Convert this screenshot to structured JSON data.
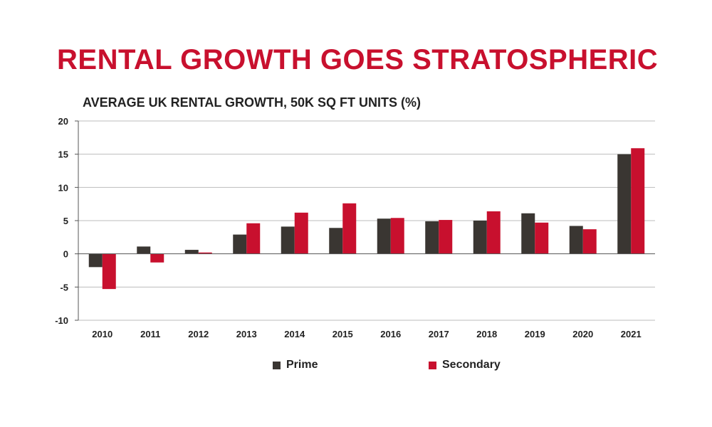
{
  "title": "RENTAL GROWTH GOES STRATOSPHERIC",
  "chart_data": {
    "type": "bar",
    "title": "AVERAGE UK RENTAL GROWTH, 50K SQ FT UNITS (%)",
    "xlabel": "",
    "ylabel": "",
    "ylim": [
      -10,
      20
    ],
    "yticks": [
      20,
      15,
      10,
      5,
      0,
      -5,
      -10
    ],
    "ytick_labels": [
      "20",
      "15",
      "10",
      "5",
      "0",
      "-5",
      "-10"
    ],
    "grid": true,
    "legend_position": "bottom",
    "categories": [
      "2010",
      "2011",
      "2012",
      "2013",
      "2014",
      "2015",
      "2016",
      "2017",
      "2018",
      "2019",
      "2020",
      "2021"
    ],
    "series": [
      {
        "name": "Prime",
        "color": "#3a3632",
        "values": [
          -2.0,
          1.1,
          0.6,
          2.9,
          4.1,
          3.9,
          5.3,
          4.9,
          5.0,
          6.1,
          4.2,
          15.0
        ]
      },
      {
        "name": "Secondary",
        "color": "#c8102e",
        "values": [
          -5.3,
          -1.3,
          0.2,
          4.6,
          6.2,
          7.6,
          5.4,
          5.1,
          6.4,
          4.7,
          3.7,
          15.9
        ]
      }
    ]
  }
}
